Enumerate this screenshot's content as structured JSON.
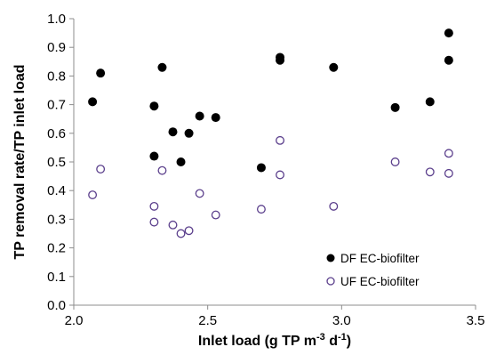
{
  "chart_data": {
    "type": "scatter",
    "title": "",
    "xlabel": "Inlet load (g TP m",
    "xlabel_sup1": "-3",
    "xlabel_mid": " d",
    "xlabel_sup2": "-1",
    "xlabel_end": ")",
    "ylabel": "TP removal rate/TP inlet load",
    "xlim": [
      2.0,
      3.5
    ],
    "ylim": [
      0.0,
      1.0
    ],
    "xticks": [
      "2.0",
      "2.5",
      "3.0",
      "3.5"
    ],
    "yticks": [
      "0.0",
      "0.1",
      "0.2",
      "0.3",
      "0.4",
      "0.5",
      "0.6",
      "0.7",
      "0.8",
      "0.9",
      "1.0"
    ],
    "grid": false,
    "legend_position": "bottom-right",
    "series": [
      {
        "name": "DF EC-biofilter",
        "marker": "filled-circle",
        "color": "#000000",
        "points": [
          {
            "x": 2.07,
            "y": 0.71
          },
          {
            "x": 2.1,
            "y": 0.81
          },
          {
            "x": 2.3,
            "y": 0.695
          },
          {
            "x": 2.3,
            "y": 0.52
          },
          {
            "x": 2.33,
            "y": 0.83
          },
          {
            "x": 2.37,
            "y": 0.605
          },
          {
            "x": 2.4,
            "y": 0.5
          },
          {
            "x": 2.43,
            "y": 0.6
          },
          {
            "x": 2.47,
            "y": 0.66
          },
          {
            "x": 2.53,
            "y": 0.655
          },
          {
            "x": 2.7,
            "y": 0.48
          },
          {
            "x": 2.77,
            "y": 0.865
          },
          {
            "x": 2.77,
            "y": 0.855
          },
          {
            "x": 2.97,
            "y": 0.83
          },
          {
            "x": 3.2,
            "y": 0.69
          },
          {
            "x": 3.33,
            "y": 0.71
          },
          {
            "x": 3.4,
            "y": 0.95
          },
          {
            "x": 3.4,
            "y": 0.855
          }
        ]
      },
      {
        "name": "UF EC-biofilter",
        "marker": "open-circle",
        "color": "#5b3f8c",
        "points": [
          {
            "x": 2.07,
            "y": 0.385
          },
          {
            "x": 2.1,
            "y": 0.475
          },
          {
            "x": 2.3,
            "y": 0.345
          },
          {
            "x": 2.3,
            "y": 0.29
          },
          {
            "x": 2.33,
            "y": 0.47
          },
          {
            "x": 2.37,
            "y": 0.28
          },
          {
            "x": 2.4,
            "y": 0.25
          },
          {
            "x": 2.43,
            "y": 0.26
          },
          {
            "x": 2.47,
            "y": 0.39
          },
          {
            "x": 2.53,
            "y": 0.315
          },
          {
            "x": 2.7,
            "y": 0.335
          },
          {
            "x": 2.77,
            "y": 0.575
          },
          {
            "x": 2.77,
            "y": 0.455
          },
          {
            "x": 2.97,
            "y": 0.345
          },
          {
            "x": 3.2,
            "y": 0.5
          },
          {
            "x": 3.33,
            "y": 0.465
          },
          {
            "x": 3.4,
            "y": 0.53
          },
          {
            "x": 3.4,
            "y": 0.46
          }
        ]
      }
    ]
  }
}
